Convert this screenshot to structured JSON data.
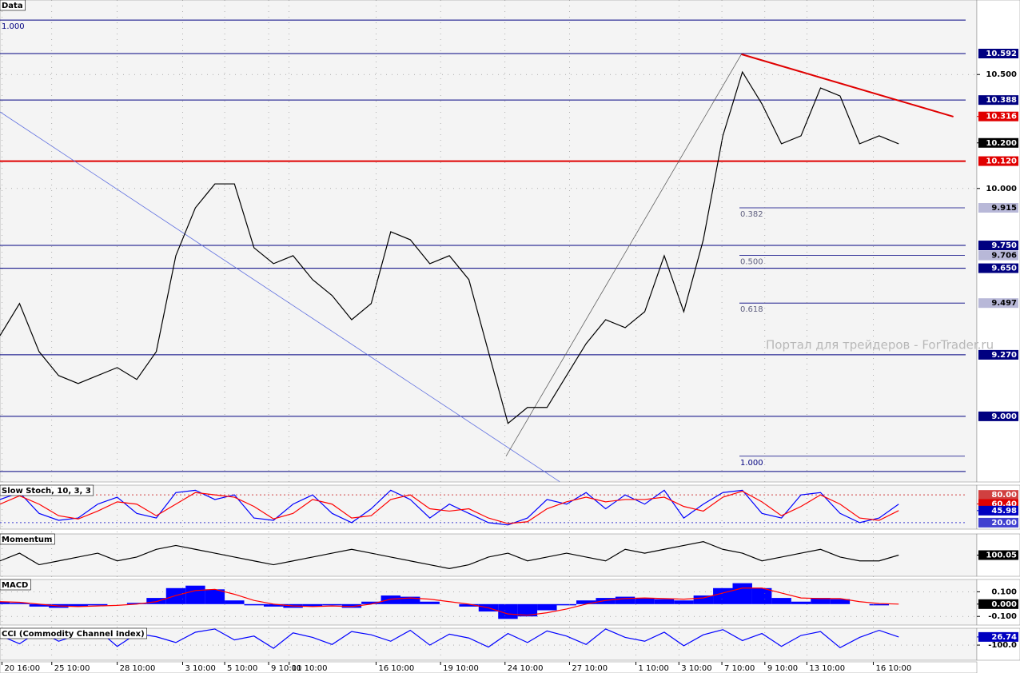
{
  "chart_data": [
    {
      "type": "line",
      "title": "Data",
      "grid": true,
      "xlim": [
        0,
        100
      ],
      "xticks": [
        {
          "value": 0.2,
          "label": "20 16:00"
        },
        {
          "value": 5.3,
          "label": "25 10:00"
        },
        {
          "value": 12,
          "label": "28 10:00"
        },
        {
          "value": 18.7,
          "label": "3 10:00"
        },
        {
          "value": 23,
          "label": "5 10:00"
        },
        {
          "value": 27.5,
          "label": "9 10:00"
        },
        {
          "value": 29.6,
          "label": "11 10:00"
        },
        {
          "value": 38.5,
          "label": "16 10:00"
        },
        {
          "value": 45.1,
          "label": "19 10:00"
        },
        {
          "value": 51.7,
          "label": "24 10:00"
        },
        {
          "value": 58.3,
          "label": "27 10:00"
        },
        {
          "value": 65.1,
          "label": "1 10:00"
        },
        {
          "value": 69.5,
          "label": "3 10:00"
        },
        {
          "value": 73.9,
          "label": "7 10:00"
        },
        {
          "value": 78.3,
          "label": "9 10:00"
        },
        {
          "value": 82.6,
          "label": "13 10:00"
        },
        {
          "value": 89.4,
          "label": "16 10:00"
        }
      ],
      "x": [
        0,
        2,
        4,
        6,
        8,
        10,
        12,
        14,
        16,
        18,
        20,
        22,
        24,
        26,
        28,
        30,
        32,
        34,
        36,
        38,
        40,
        42,
        44,
        46,
        48,
        50,
        52,
        54,
        56,
        58,
        60,
        62,
        64,
        66,
        68,
        70,
        72,
        74,
        76,
        78,
        80,
        82,
        84,
        86,
        88,
        90,
        92
      ],
      "ylim": [
        8.712,
        10.827
      ],
      "yticks": [
        {
          "value": 10.5,
          "label": "10.500"
        },
        {
          "value": 10,
          "label": "10.000"
        }
      ],
      "levels": [
        {
          "value": 10.739,
          "color": "#000080",
          "ratio": "1.000"
        },
        {
          "value": 10.592,
          "label": "10.592",
          "color": "#000080"
        },
        {
          "value": 10.388,
          "label": "10.388",
          "color": "#000080"
        },
        {
          "value": 10.12,
          "label": "10.120",
          "color": "#e00000"
        },
        {
          "value": 9.75,
          "label": "9.750",
          "color": "#000080"
        },
        {
          "value": 9.65,
          "label": "9.650",
          "color": "#000080"
        },
        {
          "value": 9.27,
          "label": "9.270",
          "color": "#000080"
        },
        {
          "value": 9,
          "label": "9.000",
          "color": "#000080"
        },
        {
          "value": 8.758,
          "color": "#000080"
        }
      ],
      "fib_color": "#b8b8d8",
      "fib_levels": [
        {
          "value": 9.915,
          "ratio": "0.382",
          "label": "9.915"
        },
        {
          "value": 9.706,
          "ratio": "0.500",
          "label": "9.706"
        },
        {
          "value": 9.497,
          "ratio": "0.618",
          "label": "9.497"
        },
        {
          "value": 8.825,
          "ratio": "1.000"
        }
      ],
      "markers": [
        {
          "value": 10.316,
          "label": "10.316",
          "color": "#e00000"
        },
        {
          "value": 10.2,
          "label": "10.200",
          "color": "#000000"
        }
      ],
      "lines": [
        {
          "color": "#e00000",
          "x": [
            75.9,
            97.6
          ],
          "values": [
            10.589,
            10.315
          ]
        },
        {
          "color": "#6070e0",
          "x": [
            0,
            57.3
          ],
          "values": [
            10.336,
            8.713
          ]
        },
        {
          "color": "#606060",
          "x": [
            51.8,
            75.9
          ],
          "values": [
            8.825,
            10.589
          ]
        }
      ],
      "series": [
        {
          "style": "line",
          "color": "#000000",
          "values": [
            9.354,
            9.495,
            9.284,
            9.179,
            9.144,
            9.179,
            9.214,
            9.162,
            9.284,
            9.705,
            9.915,
            10.02,
            10.02,
            9.74,
            9.67,
            9.705,
            9.6,
            9.53,
            9.424,
            9.495,
            9.81,
            9.775,
            9.67,
            9.705,
            9.6,
            9.284,
            8.969,
            9.039,
            9.039,
            9.179,
            9.319,
            9.424,
            9.389,
            9.459,
            9.705,
            9.459,
            9.775,
            10.231,
            10.511,
            10.371,
            10.196,
            10.231,
            10.441,
            10.406,
            10.196,
            10.231,
            10.196
          ]
        }
      ]
    },
    {
      "type": "line",
      "title": "Slow Stoch, 10, 3, 3",
      "ylim": [
        6,
        101
      ],
      "yticks": [],
      "levels": [
        {
          "value": 80,
          "label": "80.00",
          "color": "#d04040",
          "dash": true
        },
        {
          "value": 20,
          "label": "20.00",
          "color": "#4040d0",
          "dash": true
        }
      ],
      "markers": [
        {
          "value": 60.4,
          "label": "60.40",
          "color": "#e00000"
        },
        {
          "value": 45.98,
          "label": "45.98",
          "color": "#0000c0"
        }
      ],
      "series": [
        {
          "style": "line",
          "color": "#0000ff",
          "values": [
            70,
            85,
            40,
            25,
            30,
            60,
            75,
            40,
            30,
            85,
            90,
            70,
            80,
            30,
            25,
            60,
            80,
            40,
            20,
            50,
            90,
            70,
            30,
            60,
            40,
            20,
            15,
            30,
            70,
            60,
            85,
            50,
            80,
            60,
            90,
            30,
            60,
            85,
            90,
            40,
            30,
            80,
            85,
            40,
            20,
            30,
            60
          ]
        },
        {
          "style": "line",
          "color": "#ff0000",
          "values": [
            60,
            78,
            60,
            35,
            28,
            45,
            65,
            60,
            35,
            60,
            85,
            80,
            75,
            55,
            28,
            40,
            70,
            60,
            30,
            35,
            70,
            80,
            50,
            45,
            50,
            30,
            18,
            22,
            50,
            65,
            75,
            65,
            70,
            70,
            75,
            55,
            45,
            75,
            88,
            65,
            35,
            55,
            80,
            60,
            30,
            25,
            46
          ]
        }
      ]
    },
    {
      "type": "line",
      "title": "Momentum",
      "ylim": [
        99.5,
        100.6
      ],
      "yticks": [],
      "markers": [
        {
          "value": 100.05,
          "label": "100.05",
          "color": "#000000"
        }
      ],
      "series": [
        {
          "style": "line",
          "color": "#000000",
          "values": [
            99.9,
            100.1,
            99.8,
            99.9,
            100.0,
            100.1,
            99.9,
            100.0,
            100.2,
            100.3,
            100.2,
            100.1,
            100.0,
            99.9,
            99.8,
            99.9,
            100.0,
            100.1,
            100.2,
            100.1,
            100.0,
            99.9,
            99.8,
            99.7,
            99.8,
            100.0,
            100.1,
            99.9,
            100.0,
            100.1,
            100.0,
            99.9,
            100.2,
            100.1,
            100.2,
            100.3,
            100.4,
            100.2,
            100.1,
            99.9,
            100.0,
            100.1,
            100.2,
            100.0,
            99.9,
            99.9,
            100.05
          ]
        }
      ]
    },
    {
      "type": "histogram",
      "title": "MACD",
      "ylim": [
        -0.17,
        0.2
      ],
      "yticks": [
        {
          "value": 0.1,
          "label": "0.100"
        },
        {
          "value": -0.1,
          "label": "-0.100"
        }
      ],
      "markers": [
        {
          "value": 0,
          "label": "0.000",
          "color": "#000000"
        }
      ],
      "series": [
        {
          "style": "histogram",
          "color": "#0000ff",
          "values": [
            0.02,
            0.01,
            -0.02,
            -0.03,
            -0.02,
            -0.01,
            0,
            0.01,
            0.05,
            0.13,
            0.15,
            0.12,
            0.03,
            -0.01,
            -0.02,
            -0.03,
            -0.02,
            -0.01,
            -0.03,
            0.02,
            0.07,
            0.06,
            0.02,
            0,
            -0.02,
            -0.06,
            -0.12,
            -0.1,
            -0.05,
            -0.01,
            0.03,
            0.05,
            0.06,
            0.05,
            0.04,
            0.03,
            0.07,
            0.13,
            0.17,
            0.13,
            0.05,
            0.02,
            0.05,
            0.04,
            0,
            -0.01,
            0
          ]
        },
        {
          "style": "line",
          "color": "#ff0000",
          "values": [
            0.02,
            0.015,
            0,
            -0.015,
            -0.02,
            -0.015,
            -0.01,
            0,
            0.02,
            0.07,
            0.11,
            0.12,
            0.08,
            0.03,
            0,
            -0.015,
            -0.02,
            -0.015,
            -0.02,
            0,
            0.04,
            0.05,
            0.04,
            0.02,
            0,
            -0.03,
            -0.08,
            -0.09,
            -0.07,
            -0.04,
            0,
            0.03,
            0.045,
            0.05,
            0.045,
            0.04,
            0.05,
            0.09,
            0.13,
            0.13,
            0.09,
            0.05,
            0.045,
            0.045,
            0.02,
            0.005,
            0
          ]
        }
      ]
    },
    {
      "type": "line",
      "title": "CCI (Commodity Channel Index)",
      "ylim": [
        -335,
        162
      ],
      "yticks": [
        {
          "value": -100,
          "label": "-100.0"
        }
      ],
      "markers": [
        {
          "value": 26.74,
          "label": "26.74",
          "color": "#0000c0"
        }
      ],
      "series": [
        {
          "style": "line",
          "color": "#0000ff",
          "values": [
            50,
            -80,
            120,
            -40,
            60,
            140,
            -120,
            80,
            30,
            -60,
            100,
            150,
            -20,
            40,
            -150,
            90,
            20,
            -90,
            110,
            60,
            -40,
            130,
            -100,
            70,
            10,
            -130,
            80,
            -60,
            120,
            40,
            -90,
            150,
            20,
            -40,
            100,
            -110,
            60,
            140,
            -30,
            80,
            -120,
            50,
            110,
            -140,
            20,
            130,
            26.74
          ]
        }
      ]
    }
  ],
  "watermark": "Портал для трейдеров - ForTrader.ru"
}
